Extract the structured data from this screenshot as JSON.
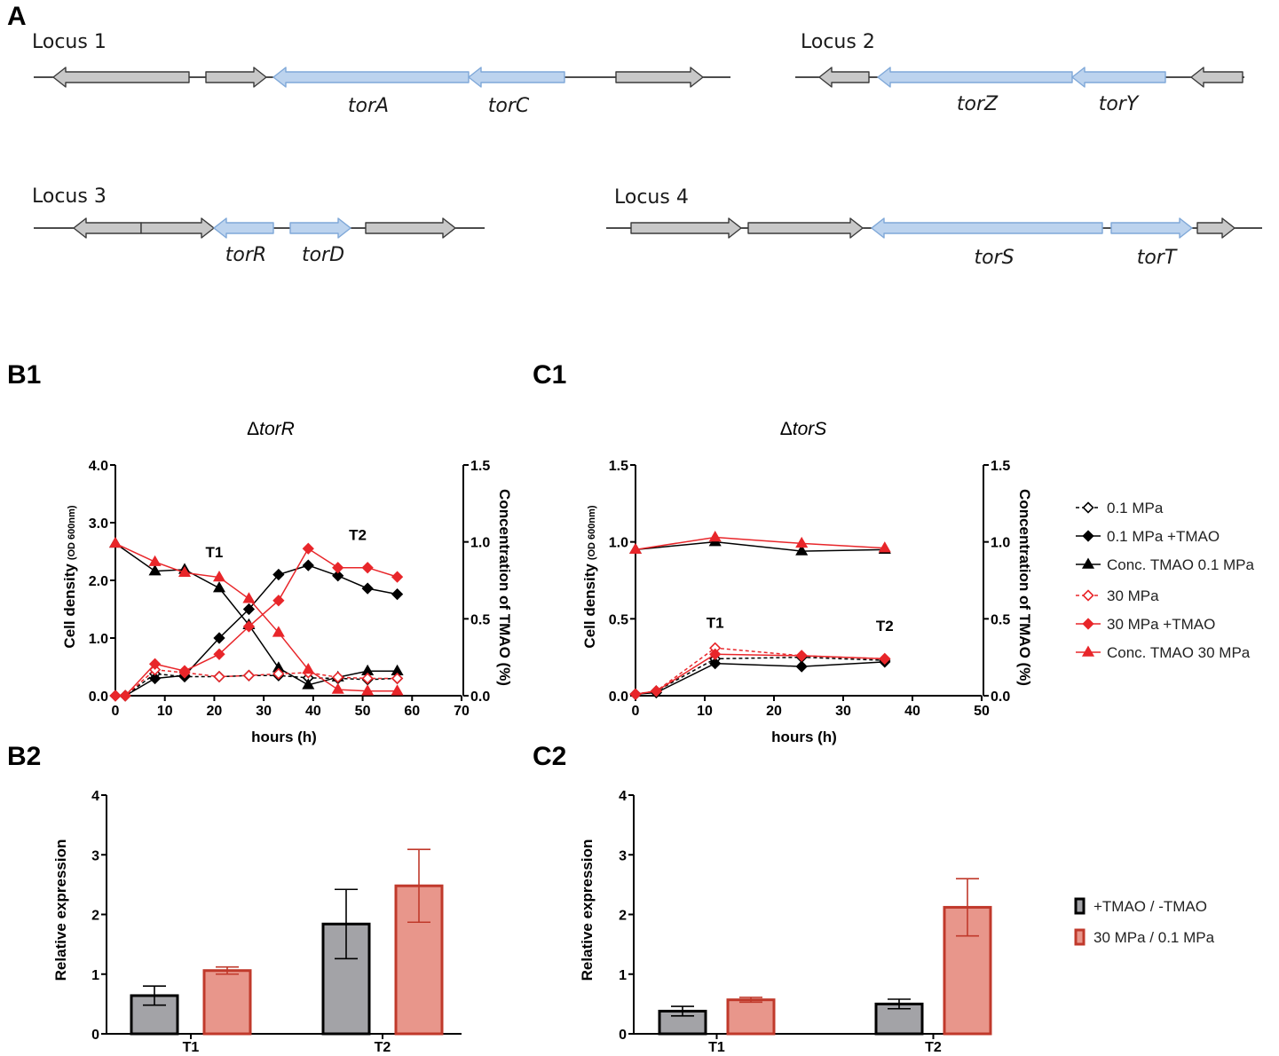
{
  "figure": {
    "panel_letters": {
      "a": "A",
      "b1": "B1",
      "c1": "C1",
      "b2": "B2",
      "c2": "C2"
    }
  },
  "colors": {
    "black": "#000000",
    "red": "#e8262a",
    "gene_gray": "#c8c8c8",
    "gene_blue": "#bcd3ee",
    "gene_blue_stroke": "#7fa8d8",
    "bar_gray": "#a3a3a7",
    "bar_red": "#e8968b",
    "bar_red_stroke": "#c0392b"
  },
  "loci": [
    {
      "title": "Locus 1",
      "genes": [
        {
          "name": "",
          "color": "gray",
          "dir": "left"
        },
        {
          "name": "",
          "color": "gray",
          "dir": "right"
        },
        {
          "name": "torA",
          "color": "blue",
          "dir": "left"
        },
        {
          "name": "torC",
          "color": "blue",
          "dir": "left"
        },
        {
          "name": "",
          "color": "gray",
          "dir": "right"
        }
      ]
    },
    {
      "title": "Locus 2",
      "genes": [
        {
          "name": "",
          "color": "gray",
          "dir": "left"
        },
        {
          "name": "torZ",
          "color": "blue",
          "dir": "left"
        },
        {
          "name": "torY",
          "color": "blue",
          "dir": "left"
        },
        {
          "name": "",
          "color": "gray",
          "dir": "left"
        }
      ]
    },
    {
      "title": "Locus 3",
      "genes": [
        {
          "name": "",
          "color": "gray",
          "dir": "left"
        },
        {
          "name": "",
          "color": "gray",
          "dir": "right"
        },
        {
          "name": "torR",
          "color": "blue",
          "dir": "left"
        },
        {
          "name": "torD",
          "color": "blue",
          "dir": "right"
        },
        {
          "name": "",
          "color": "gray",
          "dir": "right"
        }
      ]
    },
    {
      "title": "Locus 4",
      "genes": [
        {
          "name": "",
          "color": "gray",
          "dir": "right"
        },
        {
          "name": "",
          "color": "gray",
          "dir": "right"
        },
        {
          "name": "torS",
          "color": "blue",
          "dir": "left"
        },
        {
          "name": "torT",
          "color": "blue",
          "dir": "right"
        },
        {
          "name": "",
          "color": "gray",
          "dir": "right"
        }
      ]
    }
  ],
  "legend_b1c1": [
    {
      "label": "0.1 MPa",
      "color": "#000000",
      "marker": "diamond-open",
      "dash": true
    },
    {
      "label": "0.1 MPa +TMAO",
      "color": "#000000",
      "marker": "diamond",
      "dash": false
    },
    {
      "label": "Conc. TMAO 0.1 MPa",
      "color": "#000000",
      "marker": "triangle",
      "dash": false
    },
    {
      "label": "30 MPa",
      "color": "#e8262a",
      "marker": "diamond-open",
      "dash": true
    },
    {
      "label": "30 MPa +TMAO",
      "color": "#e8262a",
      "marker": "diamond",
      "dash": false
    },
    {
      "label": "Conc. TMAO 30 MPa",
      "color": "#e8262a",
      "marker": "triangle",
      "dash": false
    }
  ],
  "legend_b2c2": [
    {
      "label": "+TMAO / -TMAO",
      "fill": "#a3a3a7",
      "stroke": "#000000"
    },
    {
      "label": "30 MPa / 0.1 MPa",
      "fill": "#e8968b",
      "stroke": "#c0392b"
    }
  ],
  "chart_data": [
    {
      "panel": "B1",
      "type": "line",
      "title_prefix": "Δ",
      "title_italic": "torR",
      "xlabel": "hours (h)",
      "ylabel": "Cell density",
      "ylabel_sub": "(OD 600nm)",
      "y2label": "Concentration of TMAO (%)",
      "xlim": [
        0,
        70
      ],
      "xticks": [
        "0",
        "10",
        "20",
        "30",
        "40",
        "50",
        "60",
        "70"
      ],
      "ylim": [
        0,
        4
      ],
      "yticks": [
        "0.0",
        "1.0",
        "2.0",
        "3.0",
        "4.0"
      ],
      "y2lim": [
        0,
        1.5
      ],
      "y2ticks": [
        "0.0",
        "0.5",
        "1.0",
        "1.5"
      ],
      "annotations": [
        {
          "text": "T1",
          "x": 20,
          "y": 2.4
        },
        {
          "text": "T2",
          "x": 49,
          "y": 2.7
        }
      ],
      "series": [
        {
          "name": "0.1 MPa",
          "axis": "left",
          "color": "#000000",
          "marker": "diamond-open",
          "dash": true,
          "x": [
            0,
            2,
            8,
            14,
            21,
            27,
            33,
            39,
            45,
            51,
            57
          ],
          "y": [
            0,
            0,
            0.38,
            0.33,
            0.33,
            0.35,
            0.35,
            0.31,
            0.3,
            0.28,
            0.3
          ]
        },
        {
          "name": "0.1 MPa +TMAO",
          "axis": "left",
          "color": "#000000",
          "marker": "diamond",
          "dash": false,
          "x": [
            0,
            2,
            8,
            14,
            21,
            27,
            33,
            39,
            45,
            51,
            57
          ],
          "y": [
            0,
            0,
            0.3,
            0.35,
            1.0,
            1.5,
            2.1,
            2.26,
            2.08,
            1.86,
            1.76
          ]
        },
        {
          "name": "Conc. TMAO 0.1 MPa",
          "axis": "right",
          "color": "#000000",
          "marker": "triangle",
          "dash": false,
          "x": [
            0,
            8,
            14,
            21,
            27,
            33,
            39,
            45,
            51,
            57
          ],
          "y": [
            0.99,
            0.81,
            0.82,
            0.7,
            0.46,
            0.18,
            0.07,
            0.12,
            0.16,
            0.16
          ]
        },
        {
          "name": "30 MPa",
          "axis": "left",
          "color": "#e8262a",
          "marker": "diamond-open",
          "dash": true,
          "x": [
            0,
            2,
            8,
            14,
            21,
            27,
            33,
            39,
            45,
            51,
            57
          ],
          "y": [
            0,
            0,
            0.45,
            0.4,
            0.33,
            0.35,
            0.38,
            0.4,
            0.32,
            0.3,
            0.3
          ]
        },
        {
          "name": "30 MPa +TMAO",
          "axis": "left",
          "color": "#e8262a",
          "marker": "diamond",
          "dash": false,
          "x": [
            0,
            2,
            8,
            14,
            21,
            27,
            33,
            39,
            45,
            51,
            57
          ],
          "y": [
            0,
            0,
            0.55,
            0.43,
            0.72,
            1.2,
            1.65,
            2.55,
            2.22,
            2.22,
            2.06
          ]
        },
        {
          "name": "Conc. TMAO 30 MPa",
          "axis": "right",
          "color": "#e8262a",
          "marker": "triangle",
          "dash": false,
          "x": [
            0,
            8,
            14,
            21,
            27,
            33,
            39,
            45,
            51,
            57
          ],
          "y": [
            0.99,
            0.87,
            0.8,
            0.77,
            0.63,
            0.41,
            0.17,
            0.04,
            0.03,
            0.03
          ]
        }
      ]
    },
    {
      "panel": "C1",
      "type": "line",
      "title_prefix": "Δ",
      "title_italic": "torS",
      "xlabel": "hours (h)",
      "ylabel": "Cell density",
      "ylabel_sub": "(OD 600nm)",
      "y2label": "Concentration of TMAO (%)",
      "xlim": [
        0,
        50
      ],
      "xticks": [
        "0",
        "10",
        "20",
        "30",
        "40",
        "50"
      ],
      "ylim": [
        0,
        1.5
      ],
      "yticks": [
        "0.0",
        "0.5",
        "1.0",
        "1.5"
      ],
      "y2lim": [
        0,
        1.5
      ],
      "y2ticks": [
        "0.0",
        "0.5",
        "1.0",
        "1.5"
      ],
      "annotations": [
        {
          "text": "T1",
          "x": 11.5,
          "y": 0.44
        },
        {
          "text": "T2",
          "x": 36,
          "y": 0.42
        }
      ],
      "series": [
        {
          "name": "0.1 MPa",
          "axis": "left",
          "color": "#000000",
          "marker": "diamond-open",
          "dash": true,
          "x": [
            0,
            3,
            11.5,
            24,
            36
          ],
          "y": [
            0.01,
            0.03,
            0.24,
            0.25,
            0.23
          ]
        },
        {
          "name": "0.1 MPa +TMAO",
          "axis": "left",
          "color": "#000000",
          "marker": "diamond",
          "dash": false,
          "x": [
            0,
            3,
            11.5,
            24,
            36
          ],
          "y": [
            0.01,
            0.02,
            0.21,
            0.19,
            0.22
          ]
        },
        {
          "name": "Conc. TMAO 0.1 MPa",
          "axis": "right",
          "color": "#000000",
          "marker": "triangle",
          "dash": false,
          "x": [
            0,
            11.5,
            24,
            36
          ],
          "y": [
            0.95,
            1.0,
            0.94,
            0.95
          ]
        },
        {
          "name": "30 MPa",
          "axis": "left",
          "color": "#e8262a",
          "marker": "diamond-open",
          "dash": true,
          "x": [
            0,
            3,
            11.5,
            24,
            36
          ],
          "y": [
            0.01,
            0.03,
            0.31,
            0.26,
            0.24
          ]
        },
        {
          "name": "30 MPa +TMAO",
          "axis": "left",
          "color": "#e8262a",
          "marker": "diamond",
          "dash": false,
          "x": [
            0,
            3,
            11.5,
            24,
            36
          ],
          "y": [
            0.01,
            0.03,
            0.27,
            0.26,
            0.24
          ]
        },
        {
          "name": "Conc. TMAO 30 MPa",
          "axis": "right",
          "color": "#e8262a",
          "marker": "triangle",
          "dash": false,
          "x": [
            0,
            11.5,
            24,
            36
          ],
          "y": [
            0.95,
            1.03,
            0.99,
            0.96
          ]
        }
      ]
    },
    {
      "panel": "B2",
      "type": "bar",
      "ylabel": "Relative expression",
      "ylim": [
        0,
        4
      ],
      "yticks": [
        "0",
        "1",
        "2",
        "3",
        "4"
      ],
      "categories": [
        "T1",
        "T2"
      ],
      "series": [
        {
          "name": "+TMAO / -TMAO",
          "fill": "#a3a3a7",
          "stroke": "#000000",
          "err_color": "#000000",
          "values": [
            0.64,
            1.84
          ],
          "errors": [
            0.16,
            0.58
          ]
        },
        {
          "name": "30 MPa / 0.1 MPa",
          "fill": "#e8968b",
          "stroke": "#c0392b",
          "err_color": "#c0392b",
          "values": [
            1.06,
            2.48
          ],
          "errors": [
            0.06,
            0.61
          ]
        }
      ]
    },
    {
      "panel": "C2",
      "type": "bar",
      "ylabel": "Relative expression",
      "ylim": [
        0,
        4
      ],
      "yticks": [
        "0",
        "1",
        "2",
        "3",
        "4"
      ],
      "categories": [
        "T1",
        "T2"
      ],
      "series": [
        {
          "name": "+TMAO / -TMAO",
          "fill": "#a3a3a7",
          "stroke": "#000000",
          "err_color": "#000000",
          "values": [
            0.38,
            0.5
          ],
          "errors": [
            0.08,
            0.08
          ]
        },
        {
          "name": "30 MPa / 0.1 MPa",
          "fill": "#e8968b",
          "stroke": "#c0392b",
          "err_color": "#c0392b",
          "values": [
            0.57,
            2.12
          ],
          "errors": [
            0.04,
            0.48
          ]
        }
      ]
    }
  ]
}
